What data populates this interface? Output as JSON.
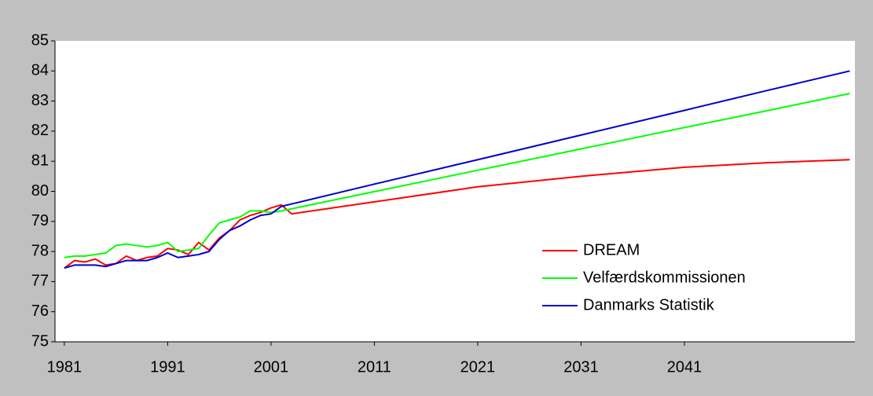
{
  "chart_data": {
    "type": "line",
    "x": [
      1981,
      1982,
      1983,
      1984,
      1985,
      1986,
      1987,
      1988,
      1989,
      1990,
      1991,
      1992,
      1993,
      1994,
      1995,
      1996,
      1997,
      1998,
      1999,
      2000,
      2001,
      2002,
      2003,
      2011,
      2021,
      2031,
      2041,
      2049,
      2057
    ],
    "series": [
      {
        "name": "DREAM",
        "color": "#ff0000",
        "values": [
          77.45,
          77.7,
          77.65,
          77.75,
          77.55,
          77.6,
          77.85,
          77.7,
          77.8,
          77.85,
          78.1,
          78.05,
          77.9,
          78.3,
          78.05,
          78.45,
          78.7,
          79.05,
          79.2,
          79.3,
          79.45,
          79.55,
          79.25,
          79.65,
          80.15,
          80.5,
          80.8,
          80.95,
          81.05
        ]
      },
      {
        "name": "Velfærdskommissionen",
        "color": "#00ff00",
        "values": [
          77.8,
          77.85,
          77.85,
          77.9,
          77.95,
          78.2,
          78.25,
          78.2,
          78.15,
          78.2,
          78.3,
          78.0,
          78.05,
          78.1,
          78.55,
          78.95,
          79.05,
          79.15,
          79.35,
          79.35,
          79.3,
          79.35,
          79.42,
          79.99,
          80.7,
          81.41,
          82.12,
          82.68,
          83.25
        ]
      },
      {
        "name": "Danmarks Statistik",
        "color": "#0000cc",
        "values": [
          77.45,
          77.55,
          77.55,
          77.55,
          77.5,
          77.6,
          77.7,
          77.7,
          77.7,
          77.8,
          77.95,
          77.8,
          77.85,
          77.9,
          78.0,
          78.4,
          78.7,
          78.85,
          79.05,
          79.2,
          79.25,
          79.5,
          79.58,
          80.24,
          81.05,
          81.87,
          82.69,
          83.35,
          84.0
        ]
      }
    ],
    "xlim": [
      1980.1,
      2057.5
    ],
    "xticks": [
      1981,
      1991,
      2001,
      2011,
      2021,
      2031,
      2041
    ],
    "ylim": [
      75,
      85
    ],
    "yticks": [
      75,
      76,
      77,
      78,
      79,
      80,
      81,
      82,
      83,
      84,
      85
    ],
    "grid": false,
    "legend": "lower right"
  }
}
